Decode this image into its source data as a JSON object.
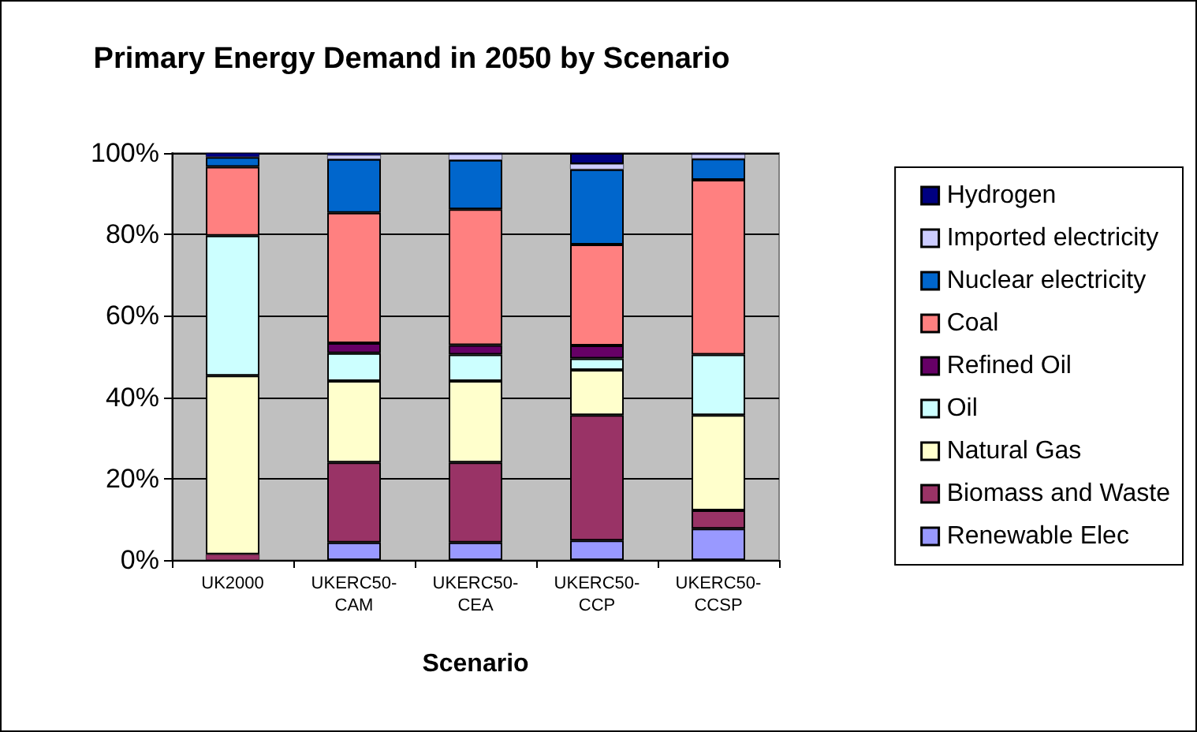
{
  "chart_data": {
    "type": "bar",
    "title": "Primary Energy Demand in 2050 by Scenario",
    "xlabel": "Scenario",
    "stacked": true,
    "grid": "y",
    "legend": "right",
    "categories": [
      "UK2000",
      "UKERC50-CAM",
      "UKERC50-CEA",
      "UKERC50-CCP",
      "UKERC50-CCSP"
    ],
    "ylim": [
      0,
      100
    ],
    "yticks": [
      {
        "value": 0,
        "label": "0%"
      },
      {
        "value": 20,
        "label": "20%"
      },
      {
        "value": 40,
        "label": "40%"
      },
      {
        "value": 60,
        "label": "60%"
      },
      {
        "value": 80,
        "label": "80%"
      },
      {
        "value": 100,
        "label": "100%"
      }
    ],
    "series": [
      {
        "name": "Renewable Elec",
        "color": "#9999ff",
        "values": [
          0,
          4.3,
          4.3,
          4.8,
          7.7
        ]
      },
      {
        "name": "Biomass and Waste",
        "color": "#993366",
        "values": [
          1.4,
          19.7,
          19.7,
          30.8,
          4.5
        ]
      },
      {
        "name": "Natural Gas",
        "color": "#ffffcc",
        "values": [
          43.9,
          20,
          20,
          11.1,
          23.4
        ]
      },
      {
        "name": "Oil",
        "color": "#ccffff",
        "values": [
          34.4,
          6.8,
          6.5,
          2.8,
          14.9
        ]
      },
      {
        "name": "Refined Oil",
        "color": "#660066",
        "values": [
          0,
          2.5,
          2.3,
          3.2,
          0
        ]
      },
      {
        "name": "Coal",
        "color": "#ff8080",
        "values": [
          16.9,
          32,
          33.4,
          24.8,
          42.9
        ]
      },
      {
        "name": "Nuclear electricity",
        "color": "#0066cc",
        "values": [
          2.4,
          13.2,
          12.1,
          18.5,
          5.2
        ]
      },
      {
        "name": "Imported electricity",
        "color": "#ccccff",
        "values": [
          0,
          1,
          1.4,
          1.3,
          1.1
        ]
      },
      {
        "name": "Hydrogen",
        "color": "#000080",
        "values": [
          1,
          0.5,
          0.3,
          2.7,
          0.3
        ]
      }
    ]
  }
}
